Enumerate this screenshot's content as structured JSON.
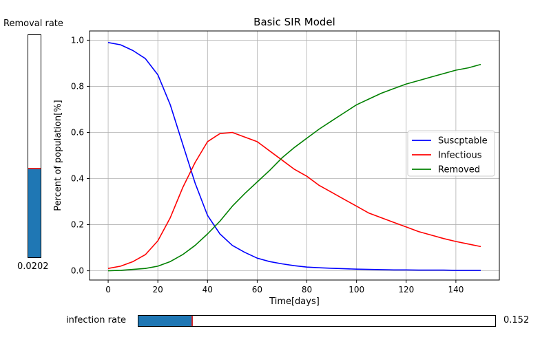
{
  "removal_slider": {
    "label": "Removal rate",
    "value_text": "0.0202",
    "fraction": 0.4
  },
  "infection_slider": {
    "label": "infection rate",
    "value_text": "0.152",
    "fraction": 0.15
  },
  "chart_data": {
    "type": "line",
    "title": "Basic SIR Model",
    "xlabel": "Time[days]",
    "ylabel": "Percent of population[%]",
    "xlim": [
      -7.5,
      157.5
    ],
    "ylim": [
      -0.04,
      1.04
    ],
    "xticks": [
      0,
      20,
      40,
      60,
      80,
      100,
      120,
      140
    ],
    "yticks": [
      0.0,
      0.2,
      0.4,
      0.6,
      0.8,
      1.0
    ],
    "xtick_labels": [
      "0",
      "20",
      "40",
      "60",
      "80",
      "100",
      "120",
      "140"
    ],
    "ytick_labels": [
      "0.0",
      "0.2",
      "0.4",
      "0.6",
      "0.8",
      "1.0"
    ],
    "grid": true,
    "legend_position": "right",
    "x": [
      0,
      5,
      10,
      15,
      20,
      25,
      30,
      35,
      40,
      45,
      50,
      55,
      60,
      65,
      70,
      75,
      80,
      85,
      90,
      95,
      100,
      105,
      110,
      115,
      120,
      125,
      130,
      135,
      140,
      145,
      150
    ],
    "series": [
      {
        "name": "Suscptable",
        "color": "#0000ff",
        "values": [
          0.99,
          0.98,
          0.955,
          0.92,
          0.85,
          0.72,
          0.55,
          0.38,
          0.24,
          0.16,
          0.11,
          0.08,
          0.055,
          0.04,
          0.03,
          0.022,
          0.016,
          0.013,
          0.011,
          0.009,
          0.007,
          0.006,
          0.005,
          0.004,
          0.004,
          0.003,
          0.003,
          0.003,
          0.002,
          0.002,
          0.002
        ]
      },
      {
        "name": "Infectious",
        "color": "#ff0000",
        "values": [
          0.01,
          0.02,
          0.04,
          0.07,
          0.13,
          0.23,
          0.36,
          0.47,
          0.56,
          0.595,
          0.6,
          0.58,
          0.56,
          0.52,
          0.48,
          0.44,
          0.41,
          0.37,
          0.34,
          0.31,
          0.28,
          0.25,
          0.23,
          0.21,
          0.19,
          0.17,
          0.155,
          0.14,
          0.127,
          0.116,
          0.105
        ]
      },
      {
        "name": "Removed",
        "color": "#008000",
        "values": [
          0.0,
          0.002,
          0.006,
          0.01,
          0.02,
          0.04,
          0.07,
          0.11,
          0.16,
          0.215,
          0.28,
          0.335,
          0.385,
          0.435,
          0.49,
          0.535,
          0.575,
          0.615,
          0.65,
          0.685,
          0.72,
          0.745,
          0.77,
          0.79,
          0.81,
          0.825,
          0.84,
          0.855,
          0.87,
          0.88,
          0.895
        ]
      }
    ]
  }
}
